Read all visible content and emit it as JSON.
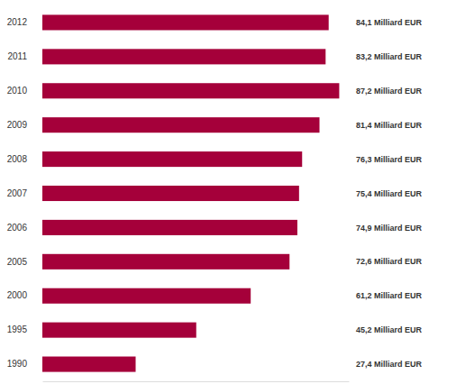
{
  "chart_data": {
    "type": "bar",
    "orientation": "horizontal",
    "categories": [
      "2012",
      "2011",
      "2010",
      "2009",
      "2008",
      "2007",
      "2006",
      "2005",
      "2000",
      "1995",
      "1990"
    ],
    "values": [
      84.1,
      83.2,
      87.2,
      81.4,
      76.3,
      75.4,
      74.9,
      72.6,
      61.2,
      45.2,
      27.4
    ],
    "value_labels": [
      "84,1 Milliard EUR",
      "83,2 Milliard EUR",
      "87,2 Milliard EUR",
      "81,4 Milliard EUR",
      "76,3 Milliard EUR",
      "75,4 Milliard EUR",
      "74,9 Milliard EUR",
      "72,6 Milliard EUR",
      "61,2 Milliard EUR",
      "45,2 Milliard EUR",
      "27,4 Milliard EUR"
    ],
    "data_labels": true,
    "color": "#a5003a",
    "xlim": [
      0,
      90
    ],
    "xticks": [],
    "tick_labels": "y",
    "grid": false
  }
}
